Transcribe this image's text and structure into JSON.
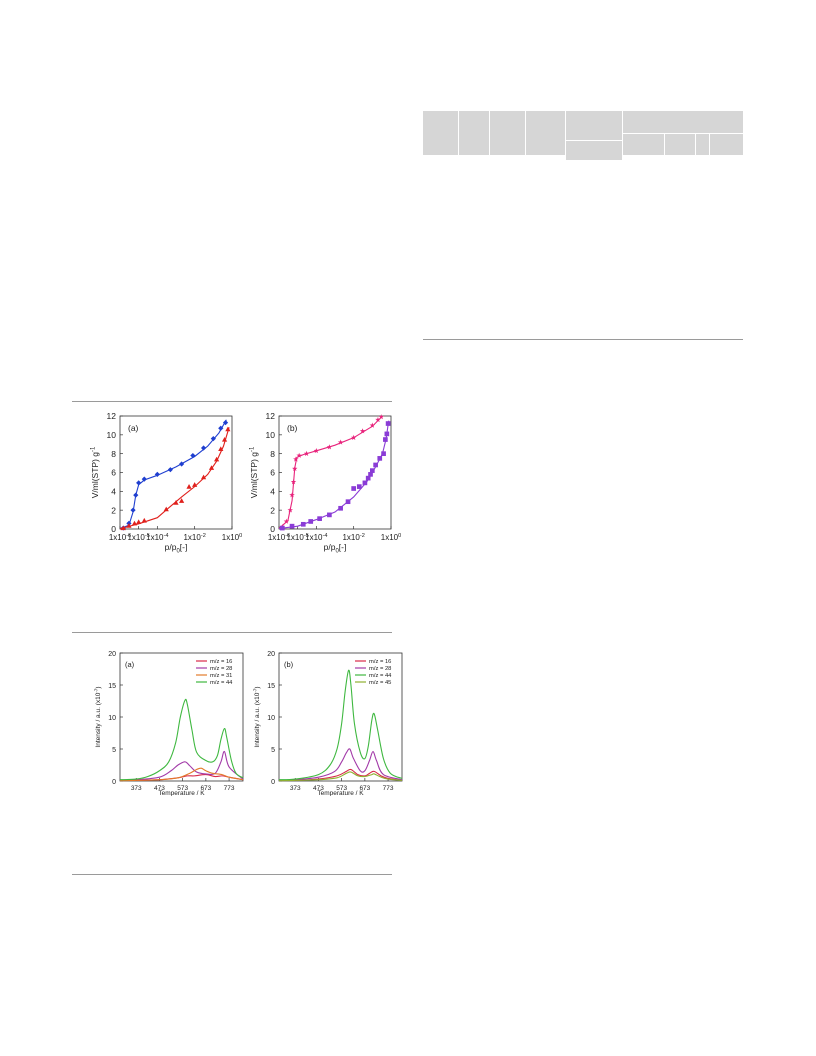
{
  "colors": {
    "blue": "#1f3fd0",
    "red": "#e0201c",
    "pink": "#e8247c",
    "purple": "#8a3cd6",
    "tpd_16": "#d82a4a",
    "tpd_28": "#a23aa8",
    "tpd_31": "#e27a2a",
    "tpd_44": "#3fb840",
    "tpd_45": "#8fb030"
  },
  "chart_data": [
    {
      "type": "scatter",
      "panel_label": "(a)",
      "xlabel": "p/p0[-]",
      "ylabel": "V/ml(STP) g-1",
      "xscale": "log",
      "xlim": [
        1e-06,
        1
      ],
      "ylim": [
        0,
        12
      ],
      "x_ticks": [
        "1x10-6",
        "1x10-5",
        "1x10-4",
        "1x10-2",
        "1x100"
      ],
      "y_ticks": [
        "0",
        "2",
        "4",
        "6",
        "8",
        "10",
        "12"
      ],
      "series": [
        {
          "marker": "diamond",
          "color": "blue",
          "points": [
            [
              1.5e-06,
              0.1
            ],
            [
              3e-06,
              0.6
            ],
            [
              5e-06,
              2.0
            ],
            [
              7e-06,
              3.6
            ],
            [
              1e-05,
              4.9
            ],
            [
              2e-05,
              5.3
            ],
            [
              0.0001,
              5.8
            ],
            [
              0.0005,
              6.3
            ],
            [
              0.002,
              6.9
            ],
            [
              0.008,
              7.8
            ],
            [
              0.03,
              8.6
            ],
            [
              0.1,
              9.6
            ],
            [
              0.25,
              10.7
            ],
            [
              0.45,
              11.3
            ]
          ],
          "curve": [
            [
              1e-06,
              0.05
            ],
            [
              3e-06,
              0.4
            ],
            [
              5e-06,
              1.8
            ],
            [
              7e-06,
              3.6
            ],
            [
              1e-05,
              4.7
            ],
            [
              2e-05,
              5.2
            ],
            [
              0.0001,
              5.7
            ],
            [
              0.001,
              6.6
            ],
            [
              0.01,
              7.7
            ],
            [
              0.05,
              8.8
            ],
            [
              0.2,
              10.2
            ],
            [
              0.5,
              11.6
            ]
          ]
        },
        {
          "marker": "triangle",
          "color": "red",
          "points": [
            [
              1.5e-06,
              0.1
            ],
            [
              3e-06,
              0.35
            ],
            [
              6e-06,
              0.6
            ],
            [
              1e-05,
              0.75
            ],
            [
              2e-05,
              0.9
            ],
            [
              0.0003,
              2.1
            ],
            [
              0.001,
              2.8
            ],
            [
              0.002,
              3.0
            ],
            [
              0.005,
              4.5
            ],
            [
              0.01,
              4.7
            ],
            [
              0.03,
              5.5
            ],
            [
              0.08,
              6.5
            ],
            [
              0.15,
              7.4
            ],
            [
              0.25,
              8.5
            ],
            [
              0.4,
              9.5
            ],
            [
              0.6,
              10.6
            ]
          ],
          "curve": [
            [
              1e-06,
              0.05
            ],
            [
              1e-05,
              0.55
            ],
            [
              0.0001,
              1.2
            ],
            [
              0.0005,
              2.4
            ],
            [
              0.002,
              3.4
            ],
            [
              0.01,
              4.5
            ],
            [
              0.05,
              5.8
            ],
            [
              0.15,
              7.2
            ],
            [
              0.35,
              8.8
            ],
            [
              0.7,
              10.8
            ]
          ]
        }
      ]
    },
    {
      "type": "scatter",
      "panel_label": "(b)",
      "xlabel": "p/p0[-]",
      "ylabel": "V/ml(STP) g-1",
      "xscale": "log",
      "xlim": [
        1e-06,
        1
      ],
      "ylim": [
        0,
        12
      ],
      "x_ticks": [
        "1x10-6",
        "1x10-5",
        "1x10-4",
        "1x10-2",
        "1x100"
      ],
      "y_ticks": [
        "0",
        "2",
        "4",
        "6",
        "8",
        "10",
        "12"
      ],
      "series": [
        {
          "marker": "star",
          "color": "pink",
          "points": [
            [
              1.5e-06,
              0.2
            ],
            [
              2.5e-06,
              0.8
            ],
            [
              4e-06,
              2.0
            ],
            [
              5e-06,
              3.6
            ],
            [
              6e-06,
              5.0
            ],
            [
              7e-06,
              6.4
            ],
            [
              8e-06,
              7.4
            ],
            [
              1.2e-05,
              7.8
            ],
            [
              3e-05,
              8.0
            ],
            [
              0.0001,
              8.3
            ],
            [
              0.0005,
              8.7
            ],
            [
              0.002,
              9.2
            ],
            [
              0.01,
              9.7
            ],
            [
              0.03,
              10.4
            ],
            [
              0.1,
              11.0
            ],
            [
              0.2,
              11.6
            ],
            [
              0.3,
              11.9
            ]
          ],
          "curve": [
            [
              1e-06,
              0.05
            ],
            [
              3e-06,
              0.9
            ],
            [
              5e-06,
              3.0
            ],
            [
              7e-06,
              6.5
            ],
            [
              9e-06,
              7.6
            ],
            [
              2e-05,
              7.9
            ],
            [
              0.0001,
              8.3
            ],
            [
              0.001,
              8.9
            ],
            [
              0.01,
              9.7
            ],
            [
              0.1,
              10.9
            ],
            [
              0.35,
              12.0
            ]
          ]
        },
        {
          "marker": "square",
          "color": "purple",
          "points": [
            [
              1.5e-06,
              0.1
            ],
            [
              5e-06,
              0.3
            ],
            [
              2e-05,
              0.5
            ],
            [
              5e-05,
              0.8
            ],
            [
              0.00015,
              1.1
            ],
            [
              0.0005,
              1.5
            ],
            [
              0.002,
              2.2
            ],
            [
              0.005,
              2.9
            ],
            [
              0.01,
              4.3
            ],
            [
              0.02,
              4.5
            ],
            [
              0.04,
              4.9
            ],
            [
              0.06,
              5.4
            ],
            [
              0.08,
              5.8
            ],
            [
              0.1,
              6.2
            ],
            [
              0.15,
              6.8
            ],
            [
              0.25,
              7.5
            ],
            [
              0.4,
              8.0
            ],
            [
              0.5,
              9.5
            ],
            [
              0.6,
              10.1
            ],
            [
              0.7,
              11.2
            ]
          ],
          "curve": [
            [
              1e-06,
              0.05
            ],
            [
              1e-05,
              0.3
            ],
            [
              0.0001,
              1.0
            ],
            [
              0.001,
              1.8
            ],
            [
              0.01,
              3.4
            ],
            [
              0.05,
              5.0
            ],
            [
              0.15,
              6.6
            ],
            [
              0.35,
              8.0
            ],
            [
              0.55,
              9.6
            ],
            [
              0.75,
              11.5
            ]
          ]
        }
      ]
    },
    {
      "type": "line",
      "panel_label": "(a)",
      "xlabel": "Temperature / K",
      "ylabel": "Intensity / a.u. (x10-7)",
      "xlim": [
        303,
        833
      ],
      "ylim": [
        0,
        20
      ],
      "x_ticks": [
        "373",
        "473",
        "573",
        "673",
        "773"
      ],
      "y_ticks": [
        "0",
        "5",
        "10",
        "15",
        "20"
      ],
      "legend_position": "top-right",
      "series": [
        {
          "name": "m/z = 16",
          "color": "tpd_16",
          "x": [
            303,
            373,
            473,
            553,
            593,
            623,
            673,
            713,
            743,
            773,
            833
          ],
          "y": [
            0.1,
            0.1,
            0.2,
            0.5,
            0.8,
            0.8,
            1.0,
            0.7,
            0.8,
            0.6,
            0.2
          ]
        },
        {
          "name": "m/z = 28",
          "color": "tpd_28",
          "x": [
            303,
            373,
            473,
            523,
            553,
            583,
            603,
            633,
            673,
            713,
            738,
            753,
            773,
            833
          ],
          "y": [
            0.1,
            0.2,
            0.6,
            1.6,
            2.5,
            3.0,
            2.4,
            1.4,
            1.1,
            1.2,
            3.0,
            4.6,
            2.2,
            0.3
          ]
        },
        {
          "name": "m/z = 31",
          "color": "tpd_31",
          "x": [
            303,
            373,
            473,
            553,
            603,
            633,
            653,
            673,
            703,
            743,
            773,
            833
          ],
          "y": [
            0.05,
            0.1,
            0.2,
            0.5,
            1.2,
            1.8,
            2.0,
            1.6,
            1.2,
            1.0,
            0.6,
            0.2
          ]
        },
        {
          "name": "m/z = 44",
          "color": "tpd_44",
          "x": [
            303,
            373,
            423,
            473,
            513,
            543,
            563,
            583,
            593,
            613,
            633,
            673,
            703,
            723,
            738,
            753,
            763,
            783,
            803,
            833
          ],
          "y": [
            0.2,
            0.3,
            0.7,
            1.6,
            3.0,
            6.0,
            10.0,
            12.6,
            12.0,
            8.0,
            4.5,
            3.2,
            3.0,
            4.0,
            6.5,
            8.2,
            6.8,
            3.2,
            1.2,
            0.5
          ]
        }
      ]
    },
    {
      "type": "line",
      "panel_label": "(b)",
      "xlabel": "Temperature / K",
      "ylabel": "Intensity / a.u. (x10-7)",
      "xlim": [
        303,
        833
      ],
      "ylim": [
        0,
        20
      ],
      "x_ticks": [
        "373",
        "473",
        "573",
        "673",
        "773"
      ],
      "y_ticks": [
        "0",
        "5",
        "10",
        "15",
        "20"
      ],
      "legend_position": "top-right",
      "series": [
        {
          "name": "m/z = 16",
          "color": "tpd_16",
          "x": [
            303,
            373,
            473,
            553,
            593,
            613,
            643,
            673,
            693,
            713,
            743,
            773,
            833
          ],
          "y": [
            0.1,
            0.1,
            0.3,
            0.8,
            1.5,
            1.8,
            1.0,
            0.8,
            1.2,
            1.5,
            0.8,
            0.4,
            0.1
          ]
        },
        {
          "name": "m/z = 28",
          "color": "tpd_28",
          "x": [
            303,
            373,
            473,
            543,
            573,
            593,
            608,
            623,
            653,
            673,
            693,
            708,
            723,
            753,
            833
          ],
          "y": [
            0.1,
            0.2,
            0.6,
            1.5,
            3.0,
            4.4,
            5.0,
            3.6,
            1.6,
            1.6,
            3.2,
            4.6,
            3.2,
            1.0,
            0.2
          ]
        },
        {
          "name": "m/z = 44",
          "color": "tpd_44",
          "x": [
            303,
            373,
            473,
            523,
            553,
            573,
            588,
            603,
            613,
            628,
            653,
            673,
            688,
            703,
            713,
            728,
            753,
            783,
            833
          ],
          "y": [
            0.2,
            0.3,
            1.0,
            2.5,
            5.0,
            9.0,
            14.0,
            17.3,
            15.0,
            9.0,
            4.5,
            3.5,
            5.5,
            9.5,
            10.5,
            8.0,
            3.5,
            1.2,
            0.4
          ]
        },
        {
          "name": "m/z = 45",
          "color": "tpd_45",
          "x": [
            303,
            373,
            473,
            553,
            593,
            613,
            643,
            673,
            703,
            713,
            743,
            773,
            833
          ],
          "y": [
            0.05,
            0.1,
            0.2,
            0.5,
            1.2,
            1.4,
            0.8,
            0.7,
            1.0,
            1.1,
            0.6,
            0.3,
            0.1
          ]
        }
      ]
    }
  ]
}
